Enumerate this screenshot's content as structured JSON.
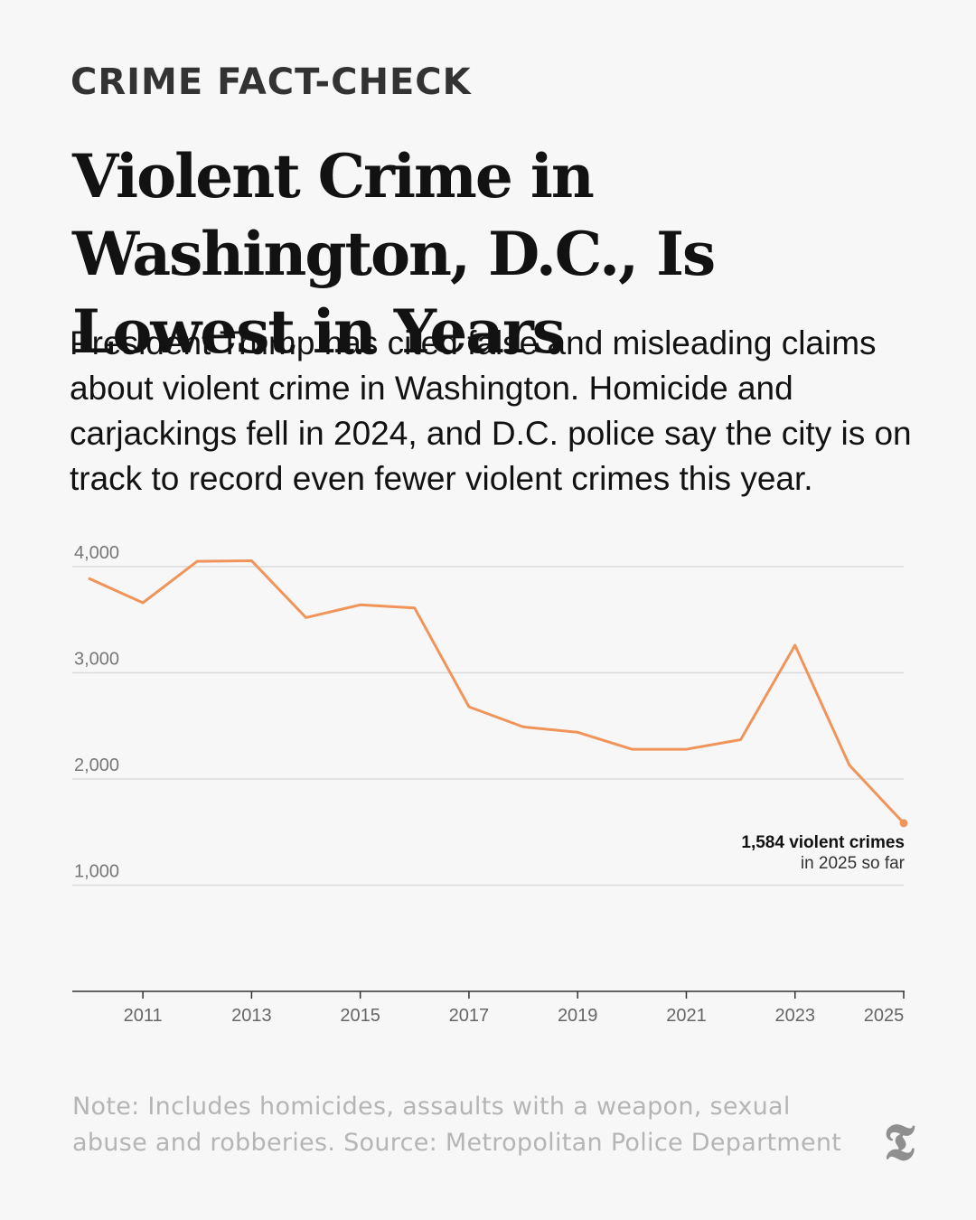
{
  "kicker": "CRIME FACT-CHECK",
  "headline": "Violent Crime in Washington, D.C., Is Lowest in Years",
  "dek": "President Trump has cited false and misleading claims about violent crime in Washington. Homicide and carjackings fell in 2024, and D.C. police say the city is on track to record even fewer violent crimes this year.",
  "chart_data": {
    "type": "line",
    "x": [
      2010,
      2011,
      2012,
      2013,
      2014,
      2015,
      2016,
      2017,
      2018,
      2019,
      2020,
      2021,
      2022,
      2023,
      2024,
      2025
    ],
    "series": [
      {
        "values": [
          3890,
          3660,
          4050,
          4055,
          3520,
          3640,
          3610,
          2680,
          2490,
          2440,
          2280,
          2280,
          2370,
          3260,
          2130,
          1584
        ]
      }
    ],
    "ylim": [
      0,
      4000
    ],
    "yticks": [
      1000,
      2000,
      3000,
      4000
    ],
    "ytick_labels": [
      "1,000",
      "2,000",
      "3,000",
      "4,000"
    ],
    "xticks": [
      2011,
      2013,
      2015,
      2017,
      2019,
      2021,
      2023,
      2025
    ],
    "xtick_labels": [
      "2011",
      "2013",
      "2015",
      "2017",
      "2019",
      "2021",
      "2023",
      "2025"
    ],
    "grid": true,
    "line_color": "#f0945a",
    "annotation": {
      "bold": "1,584 violent crimes",
      "regular": "in 2025 so far"
    }
  },
  "note": "Note: Includes homicides, assaults with a weapon, sexual abuse and robberies. Source: Metropolitan Police Department",
  "logo_glyph": "𝕿",
  "logo_icon": "nyt-t-logo"
}
